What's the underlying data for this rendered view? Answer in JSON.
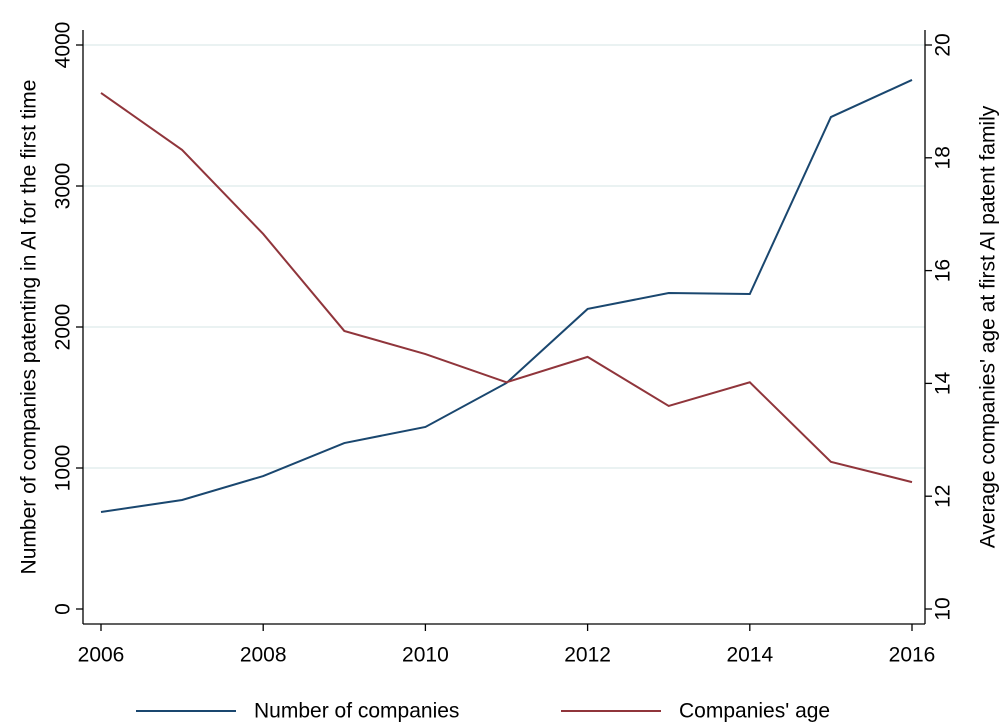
{
  "chart_data": {
    "type": "line",
    "y_label": "Number of companies patenting in AI for the first time",
    "y2_label": "Average companies' age at first AI patent family",
    "x": [
      2006,
      2007,
      2008,
      2009,
      2010,
      2011,
      2012,
      2013,
      2014,
      2015,
      2016
    ],
    "xlim": [
      2006,
      2016
    ],
    "xticks": [
      2006,
      2008,
      2010,
      2012,
      2014,
      2016
    ],
    "ylim": [
      0,
      4000
    ],
    "yticks": [
      0,
      1000,
      2000,
      3000,
      4000
    ],
    "y2lim": [
      10,
      20
    ],
    "y2ticks": [
      10,
      12,
      14,
      16,
      18,
      20
    ],
    "grid": true,
    "legend": "bottom",
    "series": [
      {
        "name": "Number of companies",
        "color": "#1a476f",
        "values": [
          688,
          773,
          943,
          1177,
          1291,
          1603,
          2128,
          2241,
          2234,
          3489,
          3752
        ]
      },
      {
        "name": "Companies' age",
        "color": "#90353b",
        "axis": "y2",
        "values": [
          19.15,
          18.14,
          16.65,
          14.93,
          14.52,
          14.02,
          14.47,
          13.6,
          14.02,
          12.61,
          12.25
        ]
      }
    ]
  }
}
